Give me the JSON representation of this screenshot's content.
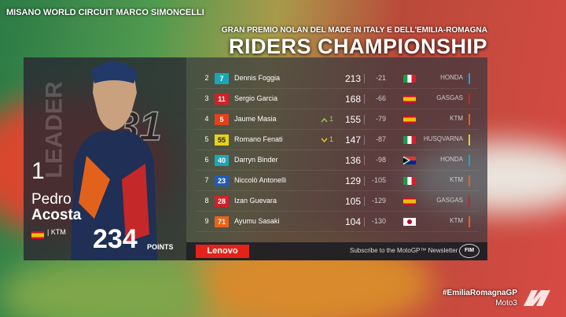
{
  "header": {
    "venue": "MISANO WORLD CIRCUIT MARCO SIMONCELLI",
    "event": "GRAN PREMIO NOLAN DEL MADE IN ITALY E DELL'EMILIA-ROMAGNA",
    "title": "RIDERS CHAMPIONSHIP"
  },
  "leader": {
    "tag": "LEADER",
    "position": 1,
    "number": 31,
    "first_name": "Pedro",
    "last_name": "Acosta",
    "flag": "es",
    "team": "KTM",
    "points": 234,
    "points_label": "POINTS"
  },
  "table": {
    "rows": [
      {
        "position": 2,
        "number": 7,
        "number_color": "#1aa6b7",
        "first_name": "Dennis",
        "last_name": "Foggia",
        "points": 213,
        "gap": -21,
        "flag": "it",
        "team": "HONDA",
        "team_color": "#1aa6d8"
      },
      {
        "position": 3,
        "number": 11,
        "number_color": "#d4202a",
        "first_name": "Sergio",
        "last_name": "Garcia",
        "points": 168,
        "gap": -66,
        "flag": "es",
        "team": "GASGAS",
        "team_color": "#d4202a"
      },
      {
        "position": 4,
        "number": 5,
        "number_color": "#e0431c",
        "first_name": "Jaume",
        "last_name": "Masia",
        "change": 1,
        "direction": "up",
        "points": 155,
        "gap": -79,
        "flag": "es",
        "team": "KTM",
        "team_color": "#e8621c"
      },
      {
        "position": 5,
        "number": 55,
        "number_color": "#e6d21a",
        "first_name": "Romano",
        "last_name": "Fenati",
        "change": 1,
        "direction": "down",
        "points": 147,
        "gap": -87,
        "flag": "it",
        "team": "HUSQVARNA",
        "team_color": "#e6d21a"
      },
      {
        "position": 6,
        "number": 40,
        "number_color": "#1aa6b7",
        "first_name": "Darryn",
        "last_name": "Binder",
        "points": 136,
        "gap": -98,
        "flag": "za",
        "team": "HONDA",
        "team_color": "#1aa6d8"
      },
      {
        "position": 7,
        "number": 23,
        "number_color": "#1f5cb8",
        "first_name": "Niccolò",
        "last_name": "Antonelli",
        "points": 129,
        "gap": -105,
        "flag": "it",
        "team": "KTM",
        "team_color": "#e8621c"
      },
      {
        "position": 8,
        "number": 28,
        "number_color": "#d4202a",
        "first_name": "Izan",
        "last_name": "Guevara",
        "points": 105,
        "gap": -129,
        "flag": "es",
        "team": "GASGAS",
        "team_color": "#d4202a"
      },
      {
        "position": 9,
        "number": 71,
        "number_color": "#e8621c",
        "first_name": "Ayumu",
        "last_name": "Sasaki",
        "points": 104,
        "gap": -130,
        "flag": "jp",
        "team": "KTM",
        "team_color": "#e8621c"
      }
    ]
  },
  "footer": {
    "sponsor": "Lenovo",
    "newsletter": "Subscribe to the MotoGP™ Newsletter",
    "badge": "FIM",
    "hashtag": "#EmiliaRomagnaGP",
    "class": "Moto3"
  }
}
